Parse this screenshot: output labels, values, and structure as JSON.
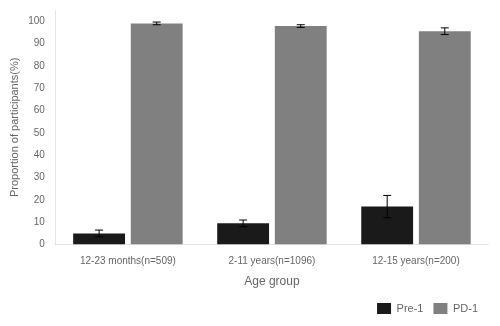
{
  "chart_data": {
    "type": "bar",
    "categories": [
      "12-23 months(n=509)",
      "2-11 years(n=1096)",
      "12-15 years(n=200)"
    ],
    "series": [
      {
        "name": "Pre-1",
        "color": "#1a1a1a",
        "values": [
          5.0,
          9.5,
          17.0
        ],
        "errors": [
          1.5,
          1.5,
          5.0
        ]
      },
      {
        "name": "PD-1",
        "color": "#808080",
        "values": [
          99.0,
          97.8,
          95.5
        ],
        "errors": [
          0.6,
          0.6,
          1.5
        ]
      }
    ],
    "xlabel": "Age group",
    "ylabel": "Proportion of participants(%)",
    "ylim": [
      0,
      105
    ],
    "yticks": [
      0,
      10,
      20,
      30,
      40,
      50,
      60,
      70,
      80,
      90,
      100
    ],
    "grid": false,
    "legend": "lower right"
  }
}
